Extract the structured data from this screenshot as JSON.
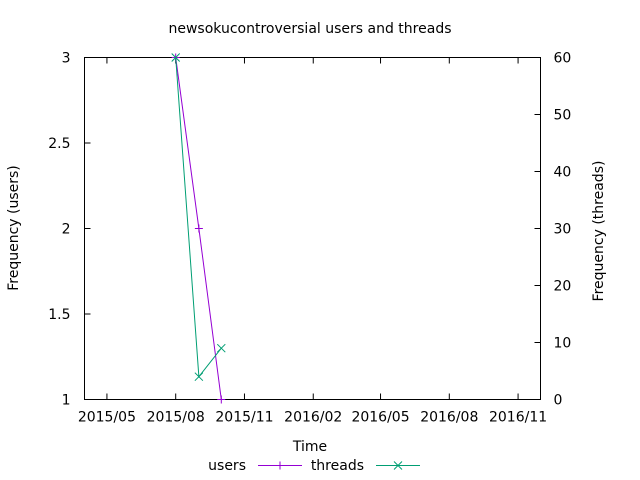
{
  "chart_data": {
    "type": "line",
    "title": "newsokucontroversial users and threads",
    "xlabel": "Time",
    "ylabel": "Frequency (users)",
    "y2label": "Frequency (threads)",
    "x_ticks": [
      "2015/05",
      "2015/08",
      "2015/11",
      "2016/02",
      "2016/05",
      "2016/08",
      "2016/11"
    ],
    "x_tick_dates": [
      "2015-05-01",
      "2015-08-01",
      "2015-11-01",
      "2016-02-01",
      "2016-05-01",
      "2016-08-01",
      "2016-11-01"
    ],
    "xlim": [
      "2015-04-01",
      "2016-12-01"
    ],
    "y_ticks": [
      "1",
      "1.5",
      "2",
      "2.5",
      "3"
    ],
    "ylim": [
      1,
      3
    ],
    "y2_ticks": [
      "0",
      "10",
      "20",
      "30",
      "40",
      "50",
      "60"
    ],
    "y2lim": [
      0,
      60
    ],
    "grid": false,
    "legend_position": "bottom",
    "series": [
      {
        "name": "users",
        "axis": "y",
        "color": "#9400d3",
        "marker": "plus",
        "x": [
          "2015-08-01",
          "2015-09-01",
          "2015-10-01"
        ],
        "y": [
          3,
          2,
          1
        ]
      },
      {
        "name": "threads",
        "axis": "y2",
        "color": "#009e73",
        "marker": "cross",
        "x": [
          "2015-08-01",
          "2015-09-01",
          "2015-10-01"
        ],
        "y": [
          60,
          4,
          9
        ]
      }
    ]
  }
}
